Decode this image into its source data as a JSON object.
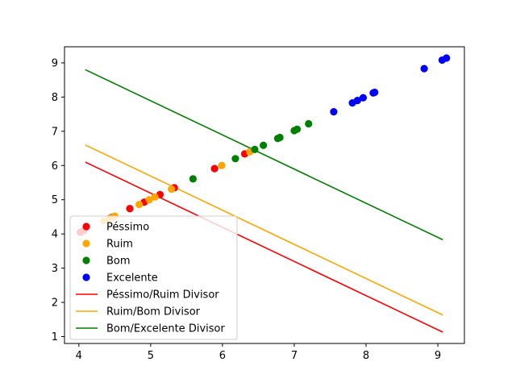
{
  "chart_data": {
    "type": "scatter",
    "title": "",
    "xlabel": "",
    "ylabel": "",
    "xlim": [
      3.8,
      9.37
    ],
    "ylim": [
      0.8,
      9.47
    ],
    "xticks": [
      4,
      5,
      6,
      7,
      8,
      9
    ],
    "yticks": [
      1,
      2,
      3,
      4,
      5,
      6,
      7,
      8,
      9
    ],
    "grid": false,
    "legend_position": "lower-left",
    "series": [
      {
        "name": "Péssimo",
        "kind": "scatter",
        "color": "#ff0000",
        "points": [
          [
            4.02,
            4.05
          ],
          [
            4.07,
            4.1
          ],
          [
            4.45,
            4.48
          ],
          [
            4.71,
            4.74
          ],
          [
            4.91,
            4.93
          ],
          [
            5.13,
            5.15
          ],
          [
            5.33,
            5.35
          ],
          [
            5.89,
            5.91
          ],
          [
            6.31,
            6.34
          ]
        ]
      },
      {
        "name": "Ruim",
        "kind": "scatter",
        "color": "#ffa500",
        "points": [
          [
            4.35,
            4.38
          ],
          [
            4.43,
            4.46
          ],
          [
            4.5,
            4.52
          ],
          [
            4.84,
            4.86
          ],
          [
            4.98,
            5.0
          ],
          [
            5.06,
            5.08
          ],
          [
            5.29,
            5.31
          ],
          [
            5.99,
            6.0
          ],
          [
            6.38,
            6.4
          ]
        ]
      },
      {
        "name": "Bom",
        "kind": "scatter",
        "color": "#008000",
        "points": [
          [
            5.59,
            5.61
          ],
          [
            6.18,
            6.2
          ],
          [
            6.45,
            6.47
          ],
          [
            6.57,
            6.59
          ],
          [
            6.77,
            6.79
          ],
          [
            6.8,
            6.82
          ],
          [
            7.0,
            7.02
          ],
          [
            7.04,
            7.06
          ],
          [
            7.2,
            7.22
          ]
        ]
      },
      {
        "name": "Excelente",
        "kind": "scatter",
        "color": "#0000ff",
        "points": [
          [
            7.55,
            7.57
          ],
          [
            7.81,
            7.83
          ],
          [
            7.88,
            7.9
          ],
          [
            7.96,
            7.98
          ],
          [
            8.1,
            8.12
          ],
          [
            8.12,
            8.14
          ],
          [
            8.81,
            8.83
          ],
          [
            9.06,
            9.08
          ],
          [
            9.12,
            9.14
          ]
        ]
      },
      {
        "name": "Péssimo/Ruim Divisor",
        "kind": "line",
        "color": "#ff0000",
        "points": [
          [
            4.09,
            6.1
          ],
          [
            9.07,
            1.13
          ]
        ]
      },
      {
        "name": "Ruim/Bom Divisor",
        "kind": "line",
        "color": "#ffa500",
        "points": [
          [
            4.09,
            6.6
          ],
          [
            9.07,
            1.63
          ]
        ]
      },
      {
        "name": "Bom/Excelente Divisor",
        "kind": "line",
        "color": "#008000",
        "points": [
          [
            4.09,
            8.8
          ],
          [
            9.07,
            3.83
          ]
        ]
      }
    ]
  }
}
